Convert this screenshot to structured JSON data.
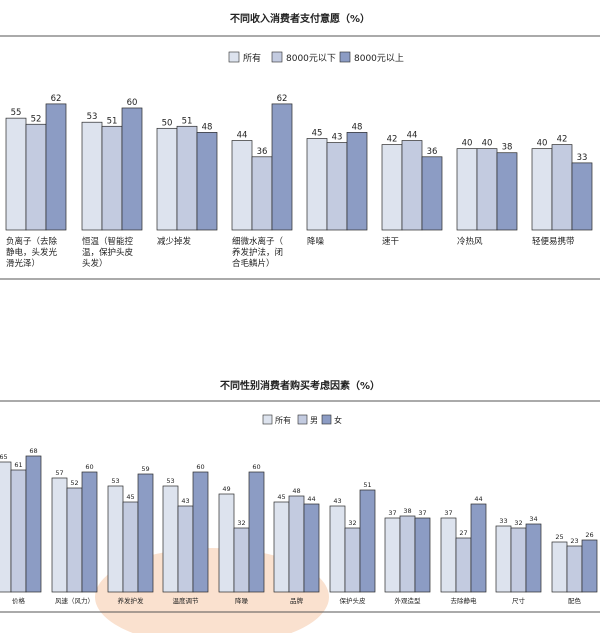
{
  "colors": {
    "all": "#dde3ee",
    "low": "#c3cbe0",
    "high": "#8c9cc4",
    "female": "#8c9cc4",
    "bar_stroke": "#2a2a2a",
    "highlight": "#f6c9a8"
  },
  "chart_data": [
    {
      "type": "bar",
      "title": "不同收入消费者支付意愿（%）",
      "legend": [
        "所有",
        "8000元以下",
        "8000元以上"
      ],
      "categories": [
        "负离子（去除静电，头发光滑光泽）",
        "恒温（智能控温，保护头皮头发）",
        "减少掉发",
        "细微水离子（养发护法，闭合毛鳞片）",
        "降噪",
        "速干",
        "冷热风",
        "轻便易携带"
      ],
      "series": [
        {
          "name": "所有",
          "values": [
            55,
            53,
            50,
            44,
            45,
            42,
            40,
            40
          ]
        },
        {
          "name": "8000元以下",
          "values": [
            52,
            51,
            51,
            36,
            43,
            44,
            40,
            42
          ]
        },
        {
          "name": "8000元以上",
          "values": [
            62,
            60,
            48,
            62,
            48,
            36,
            38,
            33
          ]
        }
      ],
      "ylim": [
        0,
        70
      ]
    },
    {
      "type": "bar",
      "title": "不同性别消费者购买考虑因素（%）",
      "legend": [
        "所有",
        "男",
        "女"
      ],
      "categories": [
        "价格",
        "风速（风力）",
        "养发护发",
        "温度调节",
        "降噪",
        "品牌",
        "保护头皮",
        "外观造型",
        "去除静电",
        "尺寸",
        "配色"
      ],
      "series": [
        {
          "name": "所有",
          "values": [
            65,
            57,
            53,
            53,
            49,
            45,
            43,
            37,
            37,
            33,
            25
          ]
        },
        {
          "name": "男",
          "values": [
            61,
            52,
            45,
            43,
            32,
            48,
            32,
            38,
            27,
            32,
            23
          ]
        },
        {
          "name": "女",
          "values": [
            68,
            60,
            59,
            60,
            60,
            44,
            51,
            37,
            44,
            34,
            26
          ]
        }
      ],
      "ylim": [
        0,
        85
      ]
    }
  ]
}
